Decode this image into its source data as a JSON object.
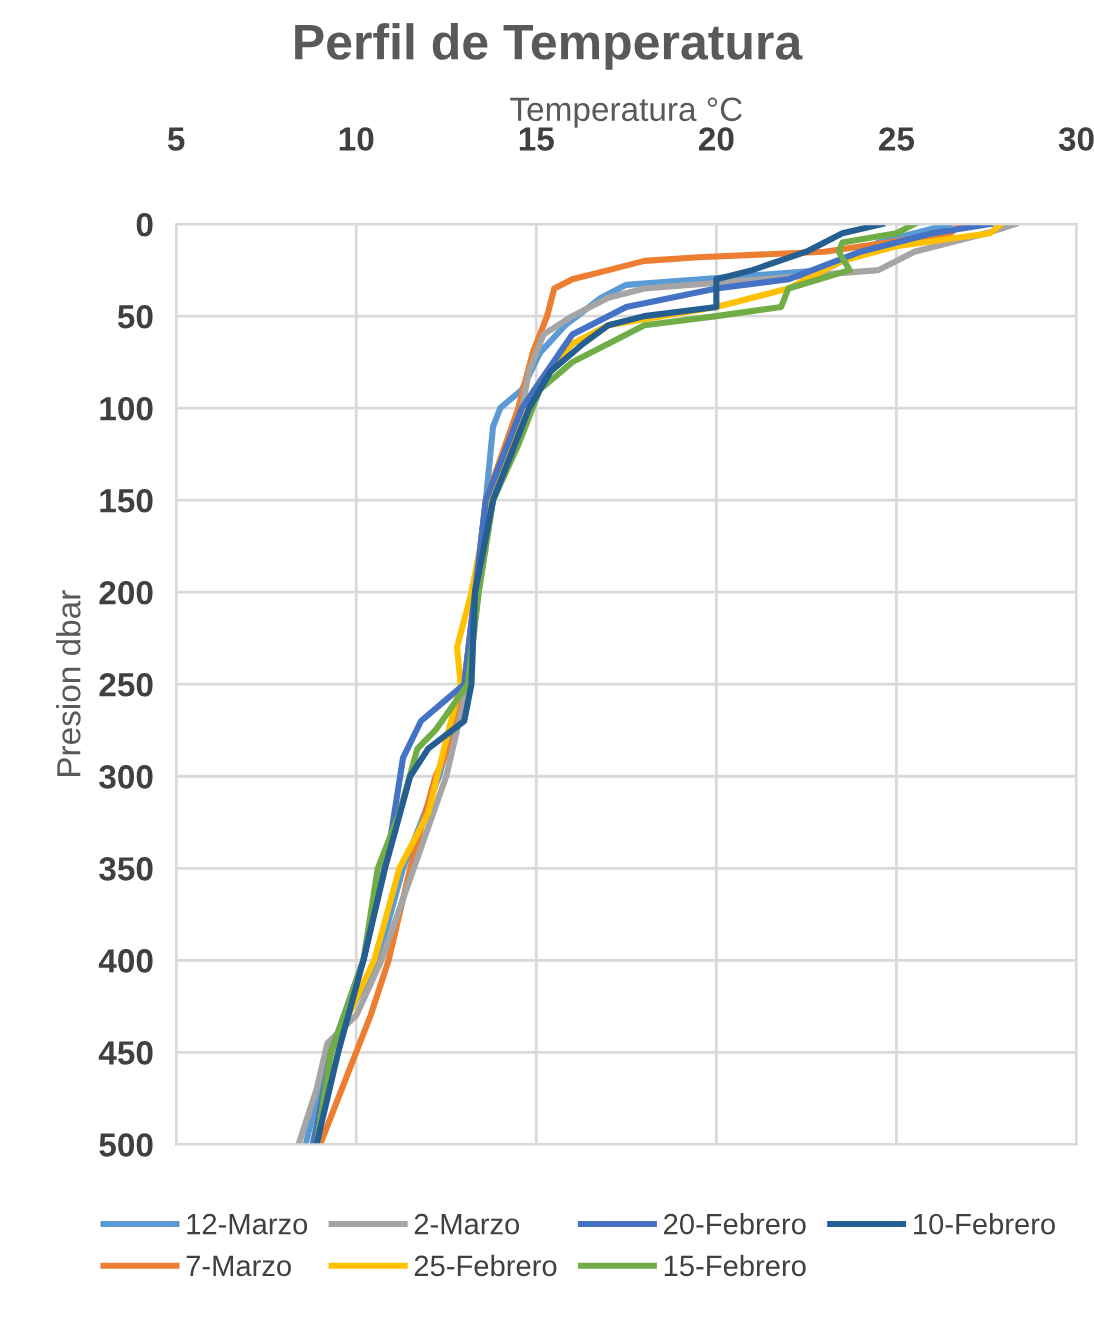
{
  "chart_data": {
    "type": "line",
    "title": "Perfil de Temperatura",
    "xlabel": "Temperatura °C",
    "ylabel": "Presion dbar",
    "xlim": [
      5,
      30
    ],
    "xticks": [
      5,
      10,
      15,
      20,
      25,
      30
    ],
    "ylim": [
      500,
      0
    ],
    "yticks": [
      0,
      50,
      100,
      150,
      200,
      250,
      300,
      350,
      400,
      450,
      500
    ],
    "grid": true,
    "legend": "bottom",
    "marker": "none",
    "line_style": "solid",
    "series": [
      {
        "name": "12-Marzo",
        "color": "#5b9bd5",
        "x": [
          26.5,
          24.5,
          23.0,
          17.5,
          16.8,
          15.8,
          15.1,
          14.6,
          14.0,
          13.8,
          13.6,
          13.3,
          13.0,
          12.3,
          11.3,
          10.6,
          9.2,
          8.6
        ],
        "values": [
          0,
          10,
          25,
          33,
          40,
          55,
          70,
          90,
          100,
          110,
          150,
          200,
          250,
          300,
          350,
          400,
          450,
          500
        ]
      },
      {
        "name": "7-Marzo",
        "color": "#ed7d31",
        "x": [
          26.8,
          26.5,
          23,
          19.5,
          18,
          17,
          16,
          15.5,
          15.3,
          14.9,
          14.5,
          13.6,
          13.3,
          13.0,
          12.7,
          12.2,
          11.5,
          10.9,
          10.4,
          9.8,
          9.0
        ],
        "values": [
          0,
          5,
          15,
          18,
          20,
          25,
          30,
          35,
          50,
          70,
          100,
          150,
          200,
          250,
          280,
          300,
          350,
          400,
          430,
          460,
          500
        ]
      },
      {
        "name": "2-Marzo",
        "color": "#a5a5a5",
        "x": [
          28.3,
          27.5,
          25.5,
          24.5,
          18,
          17,
          16,
          15.2,
          14.8,
          14.6,
          13.8,
          13.4,
          13.1,
          12.5,
          11.6,
          10.7,
          10.0,
          9.2,
          8.9,
          8.4
        ],
        "values": [
          0,
          5,
          15,
          25,
          35,
          40,
          50,
          60,
          80,
          100,
          150,
          200,
          250,
          300,
          350,
          400,
          430,
          445,
          470,
          500
        ]
      },
      {
        "name": "25-Febrero",
        "color": "#ffc000",
        "x": [
          27.9,
          27.6,
          25,
          23.5,
          22,
          20,
          17,
          16.0,
          15.3,
          14.6,
          13.7,
          13.2,
          12.8,
          12.9,
          12.5,
          12.0,
          11.2,
          10.5,
          9.3,
          8.8
        ],
        "values": [
          0,
          5,
          12,
          20,
          35,
          45,
          55,
          65,
          80,
          100,
          150,
          200,
          230,
          250,
          280,
          320,
          350,
          400,
          450,
          500
        ]
      },
      {
        "name": "20-Febrero",
        "color": "#4472c4",
        "x": [
          27.6,
          26,
          24,
          22,
          20,
          17.5,
          16,
          15.3,
          14.6,
          14.0,
          13.6,
          13.3,
          13.0,
          12.4,
          11.8,
          11.3,
          10.9,
          10.2,
          9.3,
          8.8
        ],
        "values": [
          0,
          5,
          15,
          30,
          35,
          45,
          60,
          80,
          100,
          130,
          150,
          200,
          250,
          260,
          270,
          290,
          340,
          400,
          450,
          500
        ]
      },
      {
        "name": "15-Febrero",
        "color": "#70ad47",
        "x": [
          25.5,
          25,
          23.5,
          23.4,
          23.7,
          22.0,
          21.8,
          20,
          18,
          17,
          16,
          15.1,
          14.5,
          13.8,
          13.4,
          13.1,
          12.2,
          11.7,
          11.2,
          10.6,
          10.2,
          9.3,
          8.9
        ],
        "values": [
          0,
          5,
          10,
          15,
          25,
          35,
          45,
          50,
          55,
          65,
          75,
          90,
          120,
          150,
          200,
          250,
          275,
          285,
          320,
          350,
          400,
          450,
          500
        ]
      },
      {
        "name": "10-Febrero",
        "color": "#255e91",
        "x": [
          24.6,
          23.5,
          22.5,
          21,
          20.0,
          20.0,
          18,
          17,
          16.3,
          15.4,
          14.8,
          14.2,
          13.8,
          13.3,
          13.2,
          13.0,
          12.0,
          11.5,
          10.8,
          10.2,
          9.5,
          8.9
        ],
        "values": [
          0,
          5,
          15,
          25,
          30,
          45,
          50,
          55,
          65,
          80,
          100,
          130,
          150,
          200,
          250,
          270,
          285,
          300,
          350,
          400,
          450,
          500
        ]
      }
    ]
  }
}
